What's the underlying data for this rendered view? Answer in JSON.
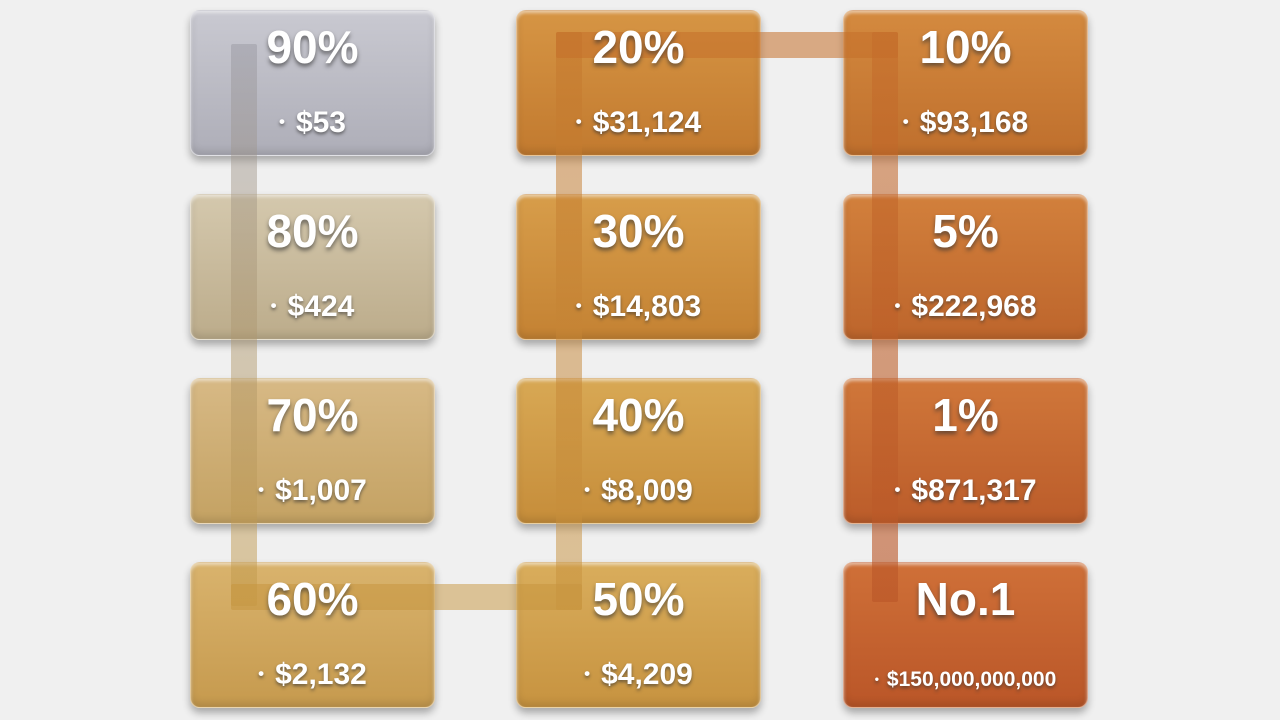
{
  "background": "#f0f0f0",
  "bullet": "•",
  "boxes": [
    {
      "title": "90%",
      "value": "$53",
      "top": "#c9c9d1",
      "bottom": "#aeaeb8"
    },
    {
      "title": "80%",
      "value": "$424",
      "top": "#d4c8ad",
      "bottom": "#bcac8b"
    },
    {
      "title": "70%",
      "value": "$1,007",
      "top": "#d7b985",
      "bottom": "#c4a263"
    },
    {
      "title": "60%",
      "value": "$2,132",
      "top": "#d9b36d",
      "bottom": "#c69a4e"
    },
    {
      "title": "20%",
      "value": "$31,124",
      "top": "#d69544",
      "bottom": "#c27a2f"
    },
    {
      "title": "30%",
      "value": "$14,803",
      "top": "#d79d4a",
      "bottom": "#c48233"
    },
    {
      "title": "40%",
      "value": "$8,009",
      "top": "#d8a854",
      "bottom": "#c68d3a"
    },
    {
      "title": "50%",
      "value": "$4,209",
      "top": "#d9ad5c",
      "bottom": "#c79340"
    },
    {
      "title": "10%",
      "value": "$93,168",
      "top": "#d48a3f",
      "bottom": "#bf6f2d"
    },
    {
      "title": "5%",
      "value": "$222,968",
      "top": "#d2803c",
      "bottom": "#bd652c"
    },
    {
      "title": "1%",
      "value": "$871,317",
      "top": "#d0773a",
      "bottom": "#bb5c2a"
    },
    {
      "title": "No.1",
      "value": "$150,000,000,000",
      "top": "#cf7038",
      "bottom": "#ba5628"
    }
  ],
  "connectors": [
    {
      "name": "col1-down",
      "color": "linear-gradient(rgba(148,148,158,0.45), rgba(196,154,72,0.50))"
    },
    {
      "name": "bottom-across",
      "color": "rgba(198,148,60,0.50)"
    },
    {
      "name": "col2-up",
      "color": "linear-gradient(rgba(196,118,44,0.52), rgba(199,147,62,0.50))"
    },
    {
      "name": "top-across",
      "color": "rgba(197,112,42,0.55)"
    },
    {
      "name": "col3-down",
      "color": "linear-gradient(rgba(196,108,42,0.55), rgba(186,86,40,0.62))"
    }
  ]
}
